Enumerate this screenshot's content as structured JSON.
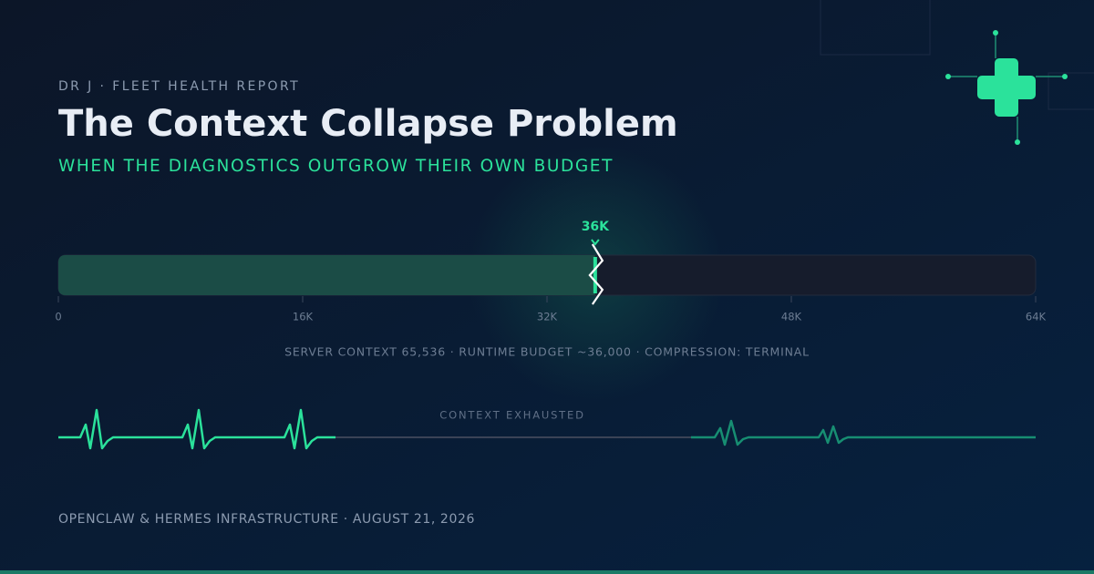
{
  "header": {
    "eyebrow": "DR J · FLEET HEALTH REPORT",
    "title": "The Context Collapse Problem",
    "subtitle": "WHEN THE DIAGNOSTICS OUTGROW THEIR OWN BUDGET"
  },
  "chart_data": {
    "type": "bar",
    "orientation": "horizontal",
    "values": [
      36000
    ],
    "value_labels": [
      "36K"
    ],
    "color": "#1b4c46",
    "track_color": "#161c2c",
    "marker_color": "#2be29b",
    "xlim": [
      0,
      65536
    ],
    "xticks": [
      0,
      {
        "value": 16384,
        "label": "16K"
      },
      {
        "value": 32768,
        "label": "32K"
      },
      {
        "value": 49152,
        "label": "48K"
      },
      {
        "value": 65536,
        "label": "64K"
      }
    ]
  },
  "caption": "SERVER CONTEXT 65,536 · RUNTIME BUDGET ~36,000 · COMPRESSION: TERMINAL",
  "heartbeat_label": "CONTEXT EXHAUSTED",
  "footer": "OPENCLAW & HERMES INFRASTRUCTURE · AUGUST 21, 2026"
}
